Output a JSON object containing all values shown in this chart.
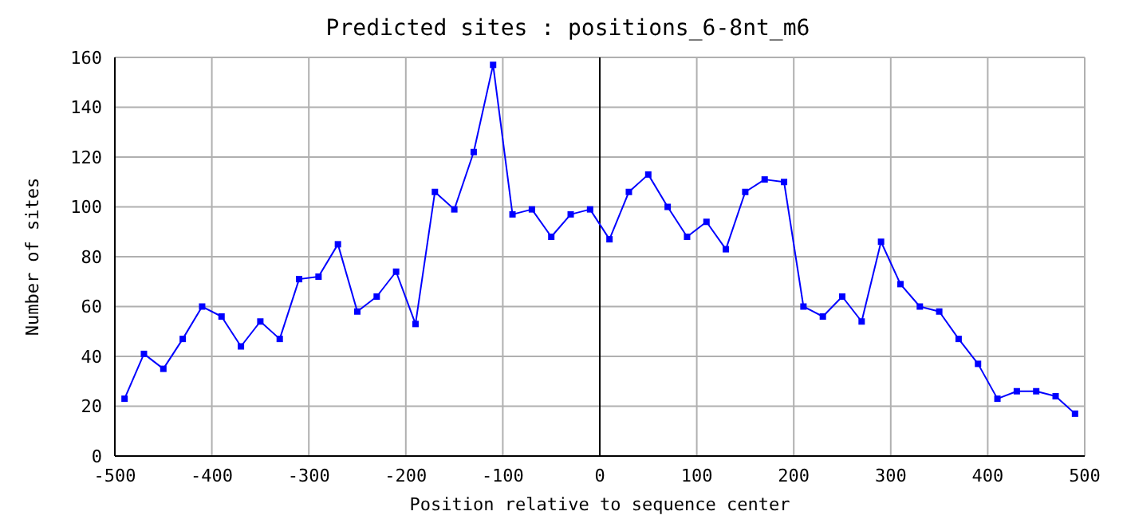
{
  "chart_data": {
    "type": "line",
    "title": "Predicted sites : positions_6-8nt_m6",
    "xlabel": "Position relative to sequence center",
    "ylabel": "Number of sites",
    "x": [
      -490,
      -470,
      -450,
      -430,
      -410,
      -390,
      -370,
      -350,
      -330,
      -310,
      -290,
      -270,
      -250,
      -230,
      -210,
      -190,
      -170,
      -150,
      -130,
      -110,
      -90,
      -70,
      -50,
      -30,
      -10,
      10,
      30,
      50,
      70,
      90,
      110,
      130,
      150,
      170,
      190,
      210,
      230,
      250,
      270,
      290,
      310,
      330,
      350,
      370,
      390,
      410,
      430,
      450,
      470,
      490
    ],
    "series": [
      {
        "color": "#0000ff",
        "values": [
          23,
          41,
          35,
          47,
          60,
          56,
          44,
          54,
          47,
          71,
          72,
          85,
          58,
          64,
          74,
          53,
          106,
          99,
          122,
          157,
          97,
          99,
          88,
          97,
          99,
          87,
          106,
          113,
          100,
          88,
          94,
          83,
          106,
          111,
          110,
          60,
          56,
          64,
          54,
          86,
          69,
          60,
          58,
          47,
          37,
          23,
          26,
          26,
          24,
          17
        ]
      }
    ],
    "xlim": [
      -500,
      500
    ],
    "xticks": [
      -500,
      -400,
      -300,
      -200,
      -100,
      0,
      100,
      200,
      300,
      400,
      500
    ],
    "ylim": [
      0,
      160
    ],
    "yticks": [
      0,
      20,
      40,
      60,
      80,
      100,
      120,
      140,
      160
    ],
    "ref_lines": [
      {
        "axis": "x",
        "value": 0,
        "color": "#000000"
      }
    ],
    "grid": true,
    "marker": "square",
    "line_style": "solid"
  }
}
